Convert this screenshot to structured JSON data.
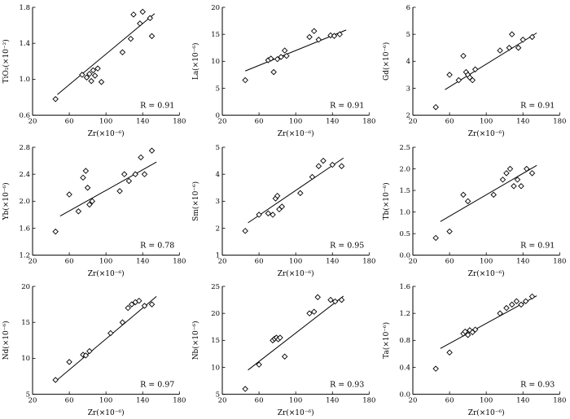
{
  "figure": {
    "background": "#ffffff",
    "stroke_color": "#000000",
    "marker": "open-diamond",
    "marker_fill": "#ffffff"
  },
  "chart_data": [
    {
      "id": "tio2",
      "type": "scatter",
      "xlabel": "Zr(×10⁻⁶)",
      "ylabel": "TiO₂(×10⁻²)",
      "xlim": [
        20,
        180
      ],
      "ylim": [
        0.6,
        1.8
      ],
      "xticks": [
        "20",
        "60",
        "100",
        "140",
        "180"
      ],
      "yticks": [
        "0.6",
        "1.0",
        "1.4",
        "1.8"
      ],
      "r_label": "R = 0.91",
      "trend": [
        [
          47,
          0.83
        ],
        [
          153,
          1.73
        ]
      ],
      "points": [
        [
          45,
          0.78
        ],
        [
          74,
          1.05
        ],
        [
          79,
          1.02
        ],
        [
          82,
          1.06
        ],
        [
          84,
          0.98
        ],
        [
          86,
          1.1
        ],
        [
          88,
          1.04
        ],
        [
          91,
          1.12
        ],
        [
          95,
          0.97
        ],
        [
          118,
          1.3
        ],
        [
          127,
          1.45
        ],
        [
          130,
          1.72
        ],
        [
          137,
          1.62
        ],
        [
          140,
          1.75
        ],
        [
          148,
          1.68
        ],
        [
          150,
          1.48
        ]
      ]
    },
    {
      "id": "la",
      "type": "scatter",
      "xlabel": "Zr(×10⁻⁶)",
      "ylabel": "La(×10⁻⁶)",
      "xlim": [
        20,
        180
      ],
      "ylim": [
        0,
        20
      ],
      "xticks": [
        "20",
        "60",
        "100",
        "140",
        "180"
      ],
      "yticks": [
        "0",
        "5",
        "10",
        "15",
        "20"
      ],
      "r_label": "R = 0.91",
      "trend": [
        [
          45,
          8.2
        ],
        [
          155,
          15.8
        ]
      ],
      "points": [
        [
          45,
          6.5
        ],
        [
          70,
          10.2
        ],
        [
          73,
          10.5
        ],
        [
          76,
          8.0
        ],
        [
          80,
          10.4
        ],
        [
          84,
          10.8
        ],
        [
          88,
          12.0
        ],
        [
          90,
          11.0
        ],
        [
          115,
          14.5
        ],
        [
          120,
          15.6
        ],
        [
          125,
          14.0
        ],
        [
          138,
          14.8
        ],
        [
          142,
          14.7
        ],
        [
          148,
          15.0
        ]
      ]
    },
    {
      "id": "gd",
      "type": "scatter",
      "xlabel": "Zr(×10⁻⁶)",
      "ylabel": "Gd(×10⁻⁶)",
      "xlim": [
        20,
        180
      ],
      "ylim": [
        2,
        6
      ],
      "xticks": [
        "20",
        "60",
        "100",
        "140",
        "180"
      ],
      "yticks": [
        "2",
        "3",
        "4",
        "5",
        "6"
      ],
      "r_label": "R = 0.91",
      "trend": [
        [
          55,
          2.95
        ],
        [
          155,
          5.05
        ]
      ],
      "points": [
        [
          45,
          2.3
        ],
        [
          60,
          3.5
        ],
        [
          70,
          3.3
        ],
        [
          75,
          4.2
        ],
        [
          78,
          3.6
        ],
        [
          80,
          3.5
        ],
        [
          82,
          3.4
        ],
        [
          85,
          3.3
        ],
        [
          88,
          3.7
        ],
        [
          115,
          4.4
        ],
        [
          125,
          4.5
        ],
        [
          128,
          5.0
        ],
        [
          135,
          4.5
        ],
        [
          140,
          4.8
        ],
        [
          150,
          4.9
        ]
      ]
    },
    {
      "id": "yb",
      "type": "scatter",
      "xlabel": "Zr(×10⁻⁶)",
      "ylabel": "Yb(×10⁻⁶)",
      "xlim": [
        20,
        180
      ],
      "ylim": [
        1.2,
        2.8
      ],
      "xticks": [
        "20",
        "60",
        "100",
        "140",
        "180"
      ],
      "yticks": [
        "1.2",
        "1.6",
        "2.0",
        "2.4",
        "2.8"
      ],
      "r_label": "R = 0.78",
      "trend": [
        [
          50,
          1.78
        ],
        [
          155,
          2.58
        ]
      ],
      "points": [
        [
          45,
          1.55
        ],
        [
          60,
          2.1
        ],
        [
          70,
          1.85
        ],
        [
          75,
          2.35
        ],
        [
          78,
          2.45
        ],
        [
          80,
          2.2
        ],
        [
          82,
          1.95
        ],
        [
          85,
          2.0
        ],
        [
          115,
          2.15
        ],
        [
          120,
          2.4
        ],
        [
          125,
          2.3
        ],
        [
          132,
          2.4
        ],
        [
          138,
          2.65
        ],
        [
          142,
          2.4
        ],
        [
          150,
          2.75
        ]
      ]
    },
    {
      "id": "sm",
      "type": "scatter",
      "xlabel": "Zr(×10⁻⁶)",
      "ylabel": "Sm(×10⁻⁶)",
      "xlim": [
        20,
        180
      ],
      "ylim": [
        1,
        5
      ],
      "xticks": [
        "20",
        "60",
        "100",
        "140",
        "180"
      ],
      "yticks": [
        "1",
        "2",
        "3",
        "4",
        "5"
      ],
      "r_label": "R = 0.95",
      "trend": [
        [
          48,
          2.2
        ],
        [
          152,
          4.6
        ]
      ],
      "points": [
        [
          45,
          1.9
        ],
        [
          60,
          2.5
        ],
        [
          70,
          2.55
        ],
        [
          75,
          2.5
        ],
        [
          78,
          3.1
        ],
        [
          80,
          3.2
        ],
        [
          82,
          2.7
        ],
        [
          85,
          2.8
        ],
        [
          105,
          3.3
        ],
        [
          118,
          3.9
        ],
        [
          125,
          4.3
        ],
        [
          130,
          4.5
        ],
        [
          140,
          4.35
        ],
        [
          150,
          4.3
        ]
      ]
    },
    {
      "id": "tb",
      "type": "scatter",
      "xlabel": "Zr(×10⁻⁶)",
      "ylabel": "Tb(×10⁻⁶)",
      "xlim": [
        20,
        180
      ],
      "ylim": [
        0,
        2.5
      ],
      "xticks": [
        "20",
        "60",
        "100",
        "140",
        "180"
      ],
      "yticks": [
        "0.0",
        "0.5",
        "1.0",
        "1.5",
        "2.0",
        "2.5"
      ],
      "r_label": "R = 0.91",
      "trend": [
        [
          50,
          0.78
        ],
        [
          155,
          2.08
        ]
      ],
      "points": [
        [
          45,
          0.4
        ],
        [
          60,
          0.55
        ],
        [
          75,
          1.4
        ],
        [
          80,
          1.25
        ],
        [
          108,
          1.4
        ],
        [
          118,
          1.75
        ],
        [
          122,
          1.9
        ],
        [
          126,
          2.0
        ],
        [
          130,
          1.6
        ],
        [
          134,
          1.75
        ],
        [
          138,
          1.6
        ],
        [
          144,
          2.0
        ],
        [
          150,
          1.9
        ]
      ]
    },
    {
      "id": "nd",
      "type": "scatter",
      "xlabel": "Zr(×10⁻⁶)",
      "ylabel": "Nd(×10⁻⁶)",
      "xlim": [
        20,
        180
      ],
      "ylim": [
        5,
        20
      ],
      "xticks": [
        "20",
        "60",
        "100",
        "140",
        "180"
      ],
      "yticks": [
        "5",
        "10",
        "15",
        "20"
      ],
      "r_label": "R = 0.97",
      "trend": [
        [
          45,
          6.8
        ],
        [
          155,
          18.6
        ]
      ],
      "points": [
        [
          45,
          7.0
        ],
        [
          60,
          9.5
        ],
        [
          75,
          10.5
        ],
        [
          78,
          10.4
        ],
        [
          82,
          11.0
        ],
        [
          105,
          13.5
        ],
        [
          118,
          15.0
        ],
        [
          124,
          17.0
        ],
        [
          128,
          17.5
        ],
        [
          132,
          17.8
        ],
        [
          136,
          18.0
        ],
        [
          142,
          17.3
        ],
        [
          150,
          17.5
        ]
      ]
    },
    {
      "id": "nb",
      "type": "scatter",
      "xlabel": "Zr(×10⁻⁶)",
      "ylabel": "Nb(×10⁻⁶)",
      "xlim": [
        20,
        180
      ],
      "ylim": [
        5,
        25
      ],
      "xticks": [
        "20",
        "60",
        "100",
        "140",
        "180"
      ],
      "yticks": [
        "5",
        "10",
        "15",
        "20",
        "25"
      ],
      "r_label": "R = 0.93",
      "trend": [
        [
          48,
          9.5
        ],
        [
          152,
          23.2
        ]
      ],
      "points": [
        [
          45,
          6.0
        ],
        [
          60,
          10.5
        ],
        [
          75,
          15.0
        ],
        [
          77,
          15.3
        ],
        [
          79,
          15.5
        ],
        [
          81,
          15.2
        ],
        [
          83,
          15.5
        ],
        [
          88,
          12.0
        ],
        [
          115,
          20.0
        ],
        [
          120,
          20.3
        ],
        [
          124,
          23.0
        ],
        [
          138,
          22.5
        ],
        [
          143,
          22.2
        ],
        [
          150,
          22.5
        ]
      ]
    },
    {
      "id": "ta",
      "type": "scatter",
      "xlabel": "Zr(×10⁻⁶)",
      "ylabel": "Ta(×10⁻⁶)",
      "xlim": [
        20,
        180
      ],
      "ylim": [
        0,
        1.6
      ],
      "xticks": [
        "20",
        "60",
        "100",
        "140",
        "180"
      ],
      "yticks": [
        "0.0",
        "0.4",
        "0.8",
        "1.2",
        "1.6"
      ],
      "r_label": "R = 0.93",
      "trend": [
        [
          50,
          0.68
        ],
        [
          155,
          1.46
        ]
      ],
      "points": [
        [
          45,
          0.38
        ],
        [
          60,
          0.62
        ],
        [
          75,
          0.9
        ],
        [
          77,
          0.93
        ],
        [
          80,
          0.88
        ],
        [
          82,
          0.95
        ],
        [
          85,
          0.92
        ],
        [
          88,
          0.96
        ],
        [
          115,
          1.2
        ],
        [
          122,
          1.28
        ],
        [
          128,
          1.33
        ],
        [
          133,
          1.38
        ],
        [
          138,
          1.33
        ],
        [
          143,
          1.38
        ],
        [
          150,
          1.45
        ]
      ]
    }
  ]
}
